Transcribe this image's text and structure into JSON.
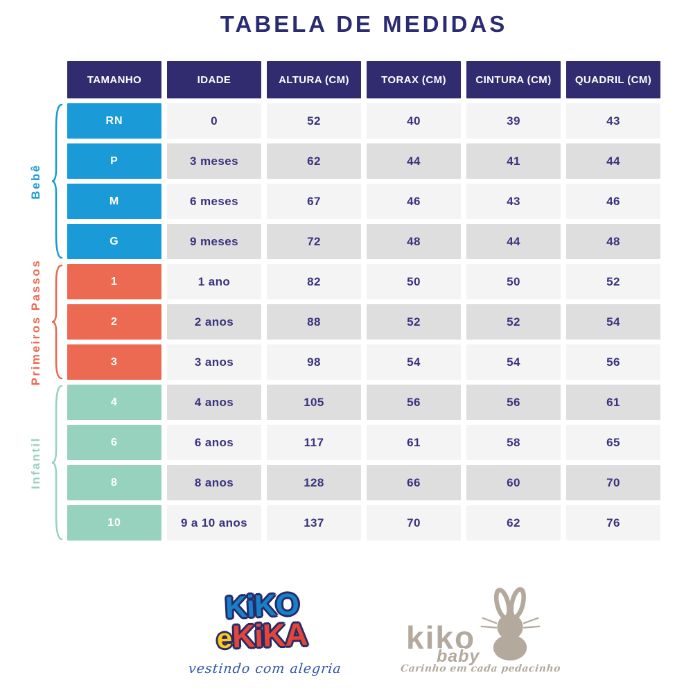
{
  "title": "TABELA DE MEDIDAS",
  "chart_data": {
    "type": "table",
    "title": "TABELA DE MEDIDAS",
    "columns": [
      "TAMANHO",
      "IDADE",
      "ALTURA (CM)",
      "TORAX (CM)",
      "CINTURA (CM)",
      "QUADRIL (CM)"
    ],
    "groups": [
      {
        "label": "Bebê",
        "color": "#1b9ad8",
        "rows": [
          {
            "size": "RN",
            "age": "0",
            "altura": "52",
            "torax": "40",
            "cintura": "39",
            "quadril": "43"
          },
          {
            "size": "P",
            "age": "3 meses",
            "altura": "62",
            "torax": "44",
            "cintura": "41",
            "quadril": "44"
          },
          {
            "size": "M",
            "age": "6 meses",
            "altura": "67",
            "torax": "46",
            "cintura": "43",
            "quadril": "46"
          },
          {
            "size": "G",
            "age": "9 meses",
            "altura": "72",
            "torax": "48",
            "cintura": "44",
            "quadril": "48"
          }
        ]
      },
      {
        "label": "Primeiros Passos",
        "color": "#ec6a52",
        "rows": [
          {
            "size": "1",
            "age": "1 ano",
            "altura": "82",
            "torax": "50",
            "cintura": "50",
            "quadril": "52"
          },
          {
            "size": "2",
            "age": "2 anos",
            "altura": "88",
            "torax": "52",
            "cintura": "52",
            "quadril": "54"
          },
          {
            "size": "3",
            "age": "3 anos",
            "altura": "98",
            "torax": "54",
            "cintura": "54",
            "quadril": "56"
          }
        ]
      },
      {
        "label": "Infantil",
        "color": "#97d2be",
        "rows": [
          {
            "size": "4",
            "age": "4 anos",
            "altura": "105",
            "torax": "56",
            "cintura": "56",
            "quadril": "61"
          },
          {
            "size": "6",
            "age": "6 anos",
            "altura": "117",
            "torax": "61",
            "cintura": "58",
            "quadril": "65"
          },
          {
            "size": "8",
            "age": "8 anos",
            "altura": "128",
            "torax": "66",
            "cintura": "60",
            "quadril": "70"
          },
          {
            "size": "10",
            "age": "9 a 10 anos",
            "altura": "137",
            "torax": "70",
            "cintura": "62",
            "quadril": "76"
          }
        ]
      }
    ]
  },
  "logos": {
    "kiko_e_kika": {
      "top": "KiKO",
      "e": "e",
      "kika": "KiKA",
      "tagline": "vestindo com alegria"
    },
    "kiko_baby": {
      "name": "kiko",
      "sub": "baby",
      "tagline": "Carinho em cada pedacinho"
    }
  },
  "colors": {
    "header_navy": "#312b70",
    "text_navy": "#39327d",
    "title_navy": "#2b2b72",
    "baby_blue": "#1b9ad8",
    "first_steps_coral": "#ec6a52",
    "kids_mint": "#97d2be",
    "row_light": "#f4f4f4",
    "row_shade": "#dedede",
    "logo_taupe": "#b3a99d",
    "logo_blue": "#1780c8",
    "logo_yellow": "#ffc81e",
    "logo_red": "#e2463a"
  }
}
